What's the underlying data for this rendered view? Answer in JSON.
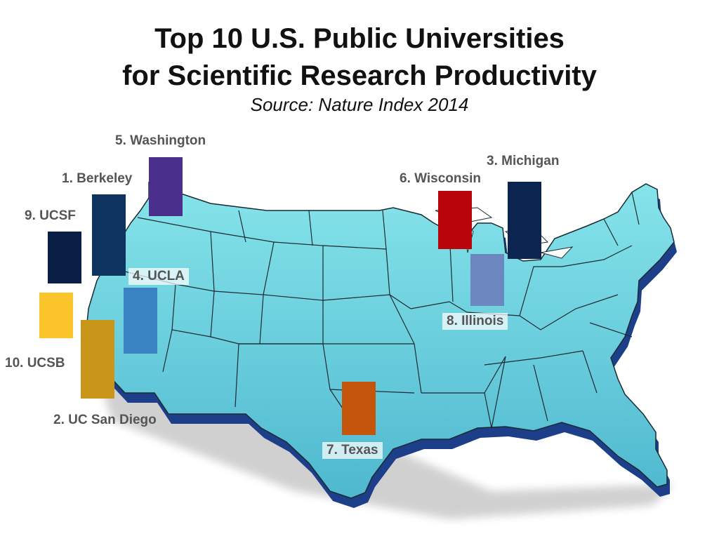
{
  "title_line1": "Top 10 U.S. Public Universities",
  "title_line2": "for Scientific Research Productivity",
  "subtitle": "Source: Nature Index 2014",
  "colors": {
    "map_face": "#6fd3dc",
    "map_side": "#1d3f8a",
    "state_border": "#1a2a33"
  },
  "universities": [
    {
      "rank": 1,
      "label": "1. Berkeley",
      "color": "#0d335e"
    },
    {
      "rank": 2,
      "label": "2. UC San Diego",
      "color": "#c9961a"
    },
    {
      "rank": 3,
      "label": "3. Michigan",
      "color": "#0b2550"
    },
    {
      "rank": 4,
      "label": "4. UCLA",
      "color": "#3b84c4"
    },
    {
      "rank": 5,
      "label": "5. Washington",
      "color": "#4a2f8d"
    },
    {
      "rank": 6,
      "label": "6. Wisconsin",
      "color": "#b8040a"
    },
    {
      "rank": 7,
      "label": "7. Texas",
      "color": "#c4560b"
    },
    {
      "rank": 8,
      "label": "8. Illinois",
      "color": "#6c86c0"
    },
    {
      "rank": 9,
      "label": "9. UCSF",
      "color": "#0b1e45"
    },
    {
      "rank": 10,
      "label": "10. UCSB",
      "color": "#fdc52c"
    }
  ]
}
